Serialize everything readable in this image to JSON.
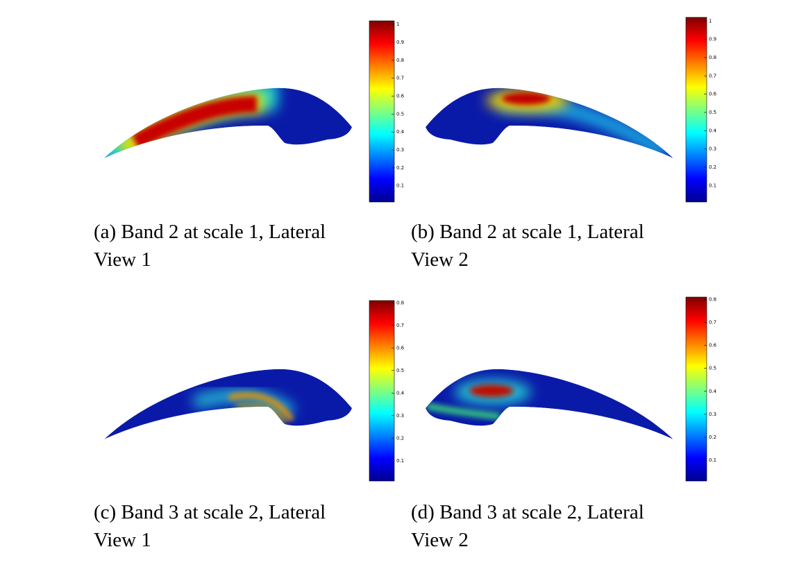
{
  "panels": [
    {
      "caption": [
        "(a) Band 2 at scale 1, Lateral",
        "View 1"
      ],
      "colorbar": {
        "clim": [
          0.01,
          1.02
        ],
        "ticks": [
          0.1,
          0.2,
          0.3,
          0.4,
          0.5,
          0.6,
          0.7,
          0.8,
          0.9,
          1
        ]
      }
    },
    {
      "caption": [
        "(b) Band 2 at scale 1, Lateral",
        "View 2"
      ],
      "colorbar": {
        "clim": [
          0.01,
          1.02
        ],
        "ticks": [
          0.1,
          0.2,
          0.3,
          0.4,
          0.5,
          0.6,
          0.7,
          0.8,
          0.9,
          1
        ]
      }
    },
    {
      "caption": [
        "(c) Band 3 at scale 2, Lateral",
        "View 1"
      ],
      "colorbar": {
        "clim": [
          0.01,
          0.81
        ],
        "ticks": [
          0.1,
          0.2,
          0.3,
          0.4,
          0.5,
          0.6,
          0.7,
          0.8
        ]
      }
    },
    {
      "caption": [
        "(d) Band 3 at scale 2, Lateral",
        "View 2"
      ],
      "colorbar": {
        "clim": [
          0.01,
          0.81
        ],
        "ticks": [
          0.1,
          0.2,
          0.3,
          0.4,
          0.5,
          0.6,
          0.7,
          0.8
        ]
      }
    }
  ]
}
